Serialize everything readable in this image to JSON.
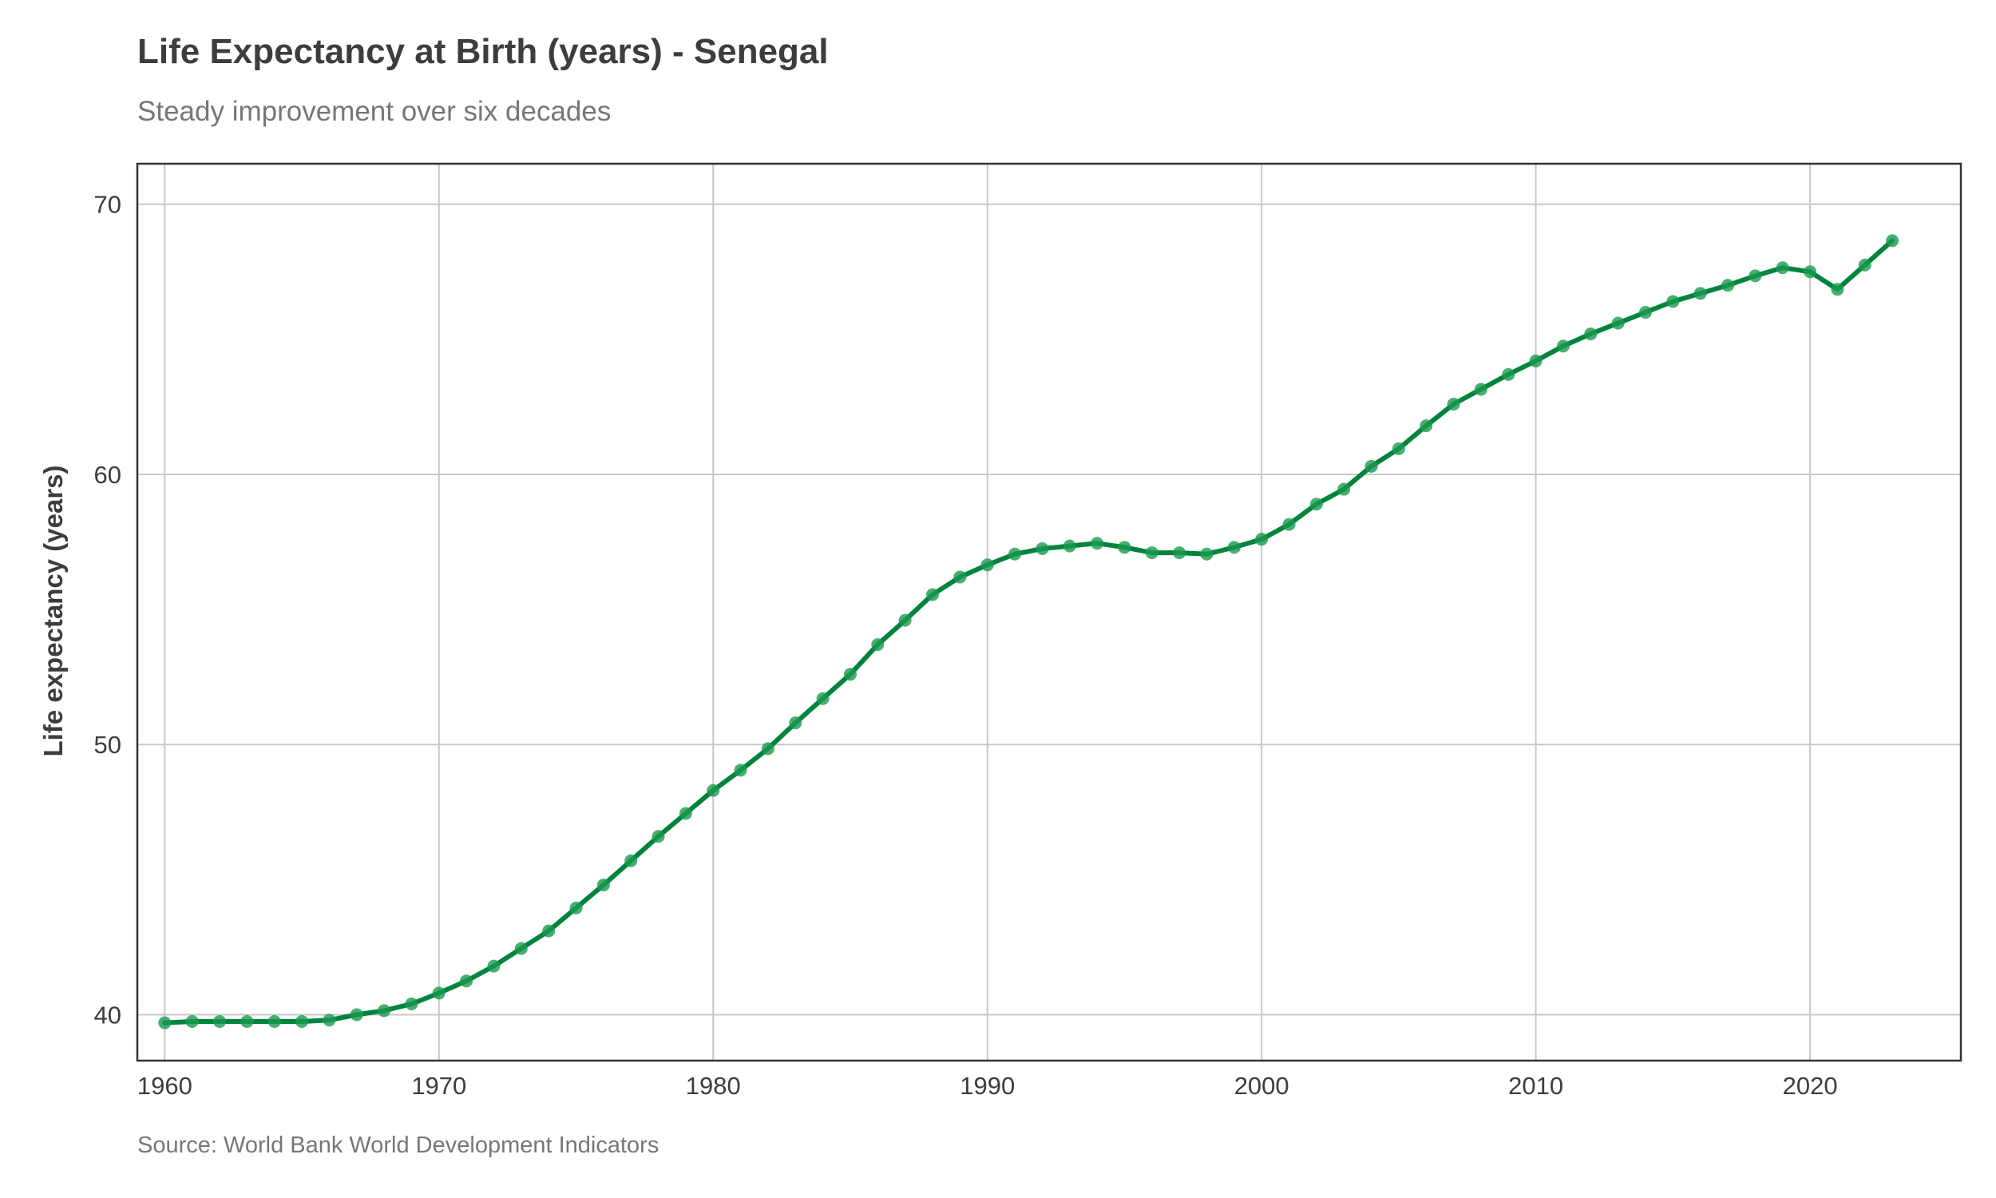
{
  "title": "Life Expectancy at Birth (years) - Senegal",
  "subtitle": "Steady improvement over six decades",
  "caption": "Source: World Bank World Development Indicators",
  "colors": {
    "line": "#00843d",
    "point": "#1a9a50",
    "grid": "#c8c8c8",
    "frame": "#333333",
    "text": "#3d3d3d"
  },
  "chart_data": {
    "type": "line",
    "title": "Life Expectancy at Birth (years) - Senegal",
    "subtitle": "Steady improvement over six decades",
    "xlabel": "",
    "ylabel": "Life expectancy (years)",
    "xlim": [
      1959,
      2025.5
    ],
    "ylim": [
      38.3,
      71.5
    ],
    "xticks": [
      1960,
      1970,
      1980,
      1990,
      2000,
      2010,
      2020
    ],
    "yticks": [
      40,
      50,
      60,
      70
    ],
    "grid": true,
    "series": [
      {
        "name": "Senegal",
        "x": [
          1960,
          1961,
          1962,
          1963,
          1964,
          1965,
          1966,
          1967,
          1968,
          1969,
          1970,
          1971,
          1972,
          1973,
          1974,
          1975,
          1976,
          1977,
          1978,
          1979,
          1980,
          1981,
          1982,
          1983,
          1984,
          1985,
          1986,
          1987,
          1988,
          1989,
          1990,
          1991,
          1992,
          1993,
          1994,
          1995,
          1996,
          1997,
          1998,
          1999,
          2000,
          2001,
          2002,
          2003,
          2004,
          2005,
          2006,
          2007,
          2008,
          2009,
          2010,
          2011,
          2012,
          2013,
          2014,
          2015,
          2016,
          2017,
          2018,
          2019,
          2020,
          2021,
          2022,
          2023
        ],
        "values": [
          39.7,
          39.75,
          39.75,
          39.75,
          39.75,
          39.75,
          39.8,
          40.0,
          40.15,
          40.4,
          40.8,
          41.25,
          41.8,
          42.45,
          43.1,
          43.95,
          44.8,
          45.7,
          46.6,
          47.45,
          48.3,
          49.05,
          49.85,
          50.8,
          51.7,
          52.6,
          53.7,
          54.6,
          55.55,
          56.2,
          56.65,
          57.05,
          57.25,
          57.35,
          57.45,
          57.3,
          57.1,
          57.1,
          57.05,
          57.3,
          57.6,
          58.15,
          58.9,
          59.45,
          60.3,
          60.95,
          61.8,
          62.6,
          63.15,
          63.7,
          64.2,
          64.75,
          65.2,
          65.6,
          66.0,
          66.4,
          66.7,
          67.0,
          67.35,
          67.65,
          67.5,
          66.85,
          67.75,
          68.65
        ]
      }
    ]
  }
}
